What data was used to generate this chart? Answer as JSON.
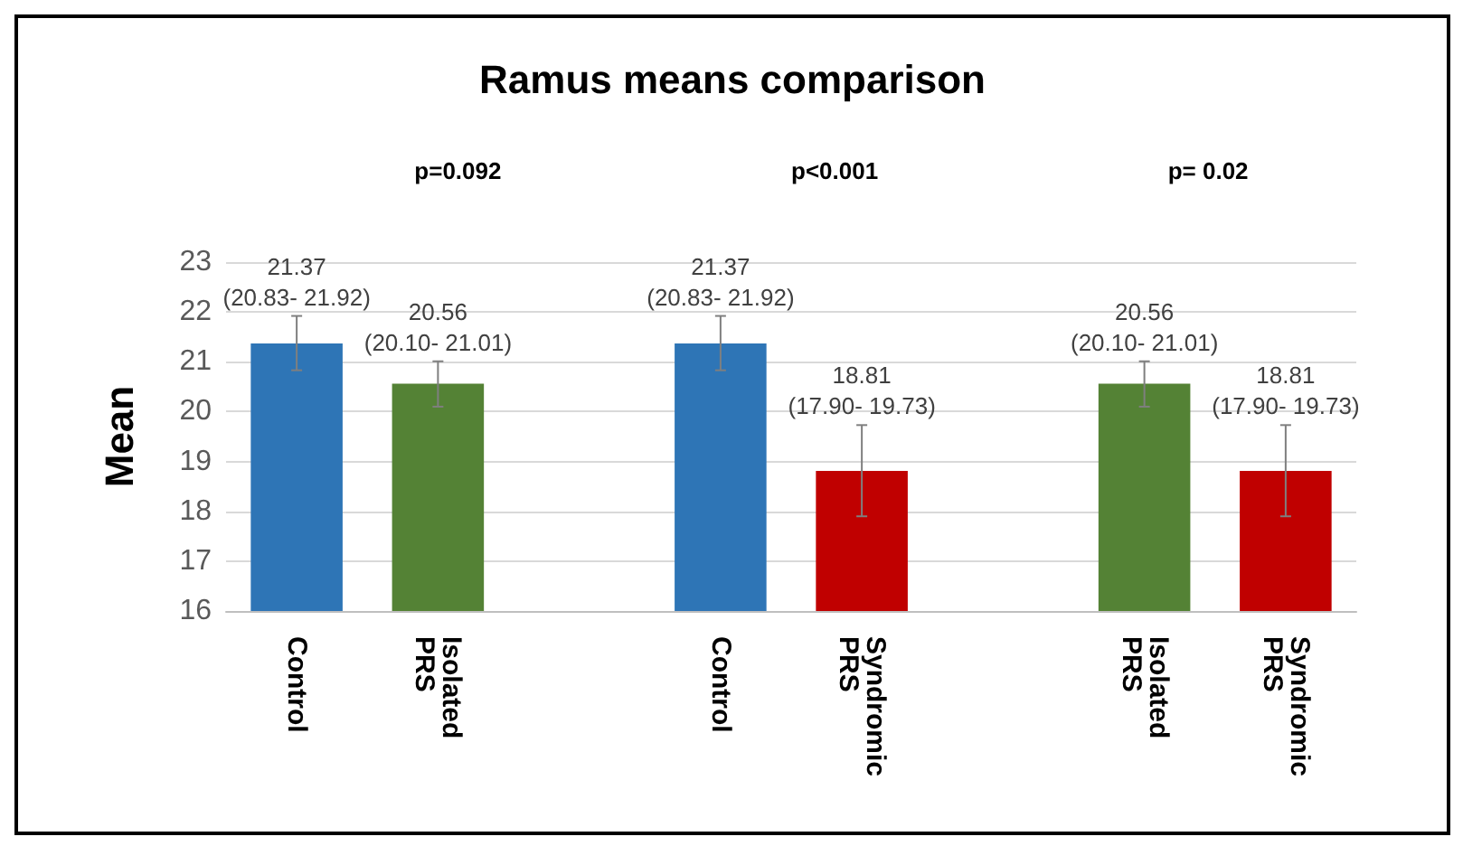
{
  "chart_data": {
    "type": "bar",
    "title": "Ramus means comparison",
    "ylabel": "Mean",
    "categories": [
      "Control",
      "Isolated PRS",
      null,
      "Control",
      "Syndromic PRS",
      null,
      "Isolated PRS",
      "Syndromic PRS"
    ],
    "values": [
      21.37,
      20.56,
      null,
      21.37,
      18.81,
      null,
      20.56,
      18.81
    ],
    "colors": [
      "#2e75b6",
      "#548235",
      null,
      "#2e75b6",
      "#c00000",
      null,
      "#548235",
      "#c00000"
    ],
    "errors": [
      [
        20.83,
        21.92
      ],
      [
        20.1,
        21.01
      ],
      null,
      [
        20.83,
        21.92
      ],
      [
        17.9,
        19.73
      ],
      null,
      [
        20.1,
        21.01
      ],
      [
        17.9,
        19.73
      ]
    ],
    "value_labels": [
      "21.37\n(20.83- 21.92)",
      "20.56\n(20.10- 21.01)",
      null,
      "21.37\n(20.83- 21.92)",
      "18.81\n(17.90- 19.73)",
      null,
      "20.56\n(20.10- 21.01)",
      "18.81\n(17.90- 19.73)"
    ],
    "annotations": [
      "p=0.092",
      "p<0.001",
      "p= 0.02"
    ],
    "ylim": [
      16,
      23
    ],
    "yticks": [
      16,
      17,
      18,
      19,
      20,
      21,
      22,
      23
    ],
    "grid": "y"
  }
}
